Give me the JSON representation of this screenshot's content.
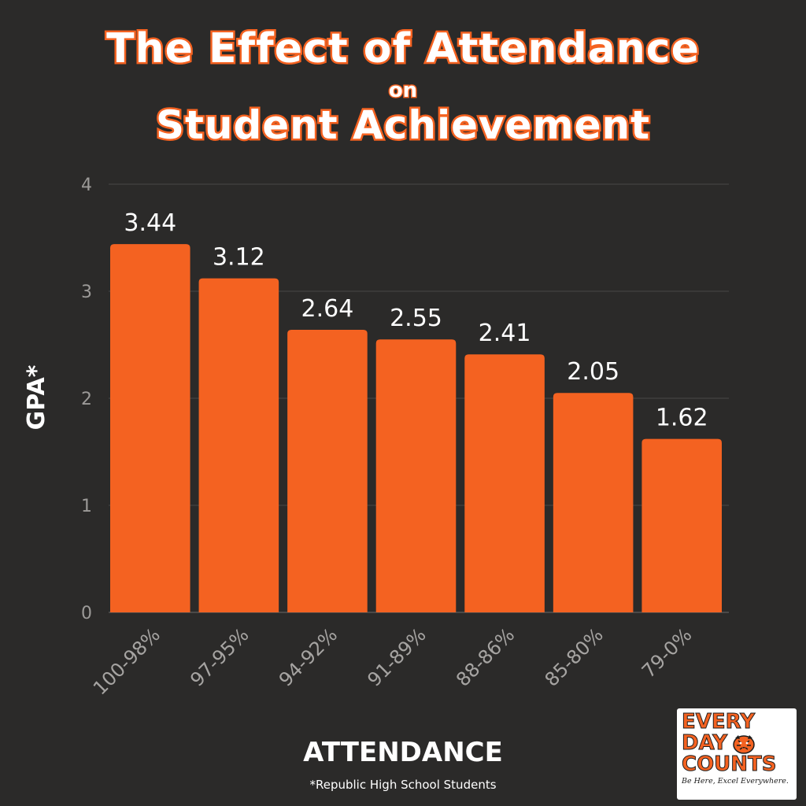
{
  "title": {
    "line1": "The Effect of Attendance",
    "line2": "on",
    "line3": "Student Achievement"
  },
  "footnote": "*Republic High School Students",
  "logo": {
    "line1": "EVERY",
    "line2": "DAY",
    "line3": "COUNTS",
    "tagline": "Be Here, Excel Everywhere.",
    "icon": "tiger-head-icon"
  },
  "colors": {
    "background": "#2b2a29",
    "bar": "#f46221",
    "accent": "#f46221",
    "gridline": "#4a4846"
  },
  "chart_data": {
    "type": "bar",
    "xlabel": "ATTENDANCE",
    "ylabel": "GPA*",
    "categories": [
      "100-98%",
      "97-95%",
      "94-92%",
      "91-89%",
      "88-86%",
      "85-80%",
      "79-0%"
    ],
    "values": [
      3.44,
      3.12,
      2.64,
      2.55,
      2.41,
      2.05,
      1.62
    ],
    "value_labels": [
      "3.44",
      "3.12",
      "2.64",
      "2.55",
      "2.41",
      "2.05",
      "1.62"
    ],
    "ylim": [
      0,
      4
    ],
    "yticks": [
      "0",
      "1",
      "2",
      "3",
      "4"
    ],
    "grid": true
  }
}
